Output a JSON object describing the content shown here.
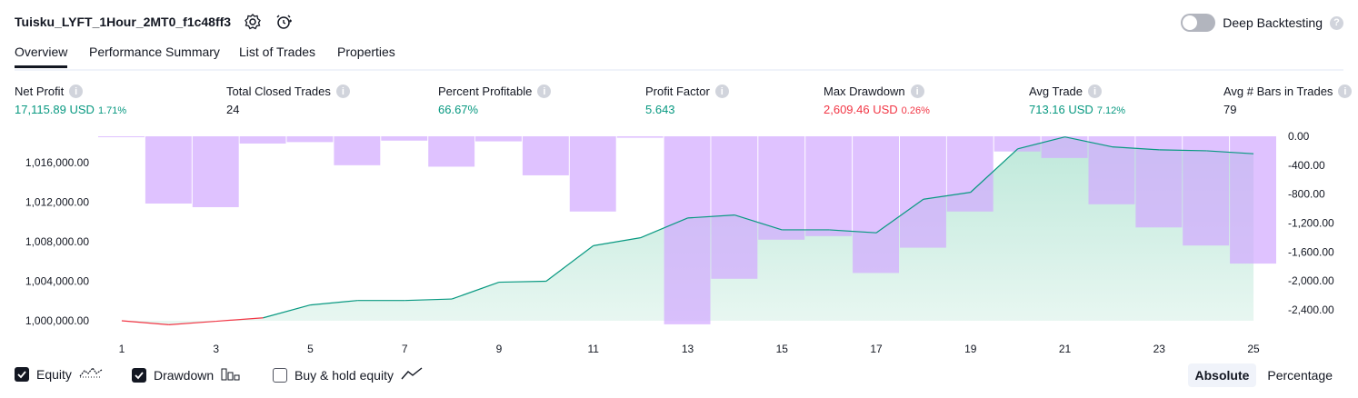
{
  "header": {
    "title": "Tuisku_LYFT_1Hour_2MT0_f1c48ff3",
    "deep_backtesting_label": "Deep Backtesting",
    "deep_backtesting_on": false
  },
  "tabs": [
    {
      "label": "Overview",
      "active": true
    },
    {
      "label": "Performance Summary",
      "active": false
    },
    {
      "label": "List of Trades",
      "active": false
    },
    {
      "label": "Properties",
      "active": false
    }
  ],
  "metrics": [
    {
      "label": "Net Profit",
      "value": "17,115.89 USD",
      "pct": "1.71%",
      "color": "pos"
    },
    {
      "label": "Total Closed Trades",
      "value": "24",
      "pct": "",
      "color": "neu"
    },
    {
      "label": "Percent Profitable",
      "value": "66.67%",
      "pct": "",
      "color": "pos"
    },
    {
      "label": "Profit Factor",
      "value": "5.643",
      "pct": "",
      "color": "pos"
    },
    {
      "label": "Max Drawdown",
      "value": "2,609.46 USD",
      "pct": "0.26%",
      "color": "neg"
    },
    {
      "label": "Avg Trade",
      "value": "713.16 USD",
      "pct": "7.12%",
      "color": "pos"
    },
    {
      "label": "Avg # Bars in Trades",
      "value": "79",
      "pct": "",
      "color": "neu"
    }
  ],
  "chart_data": {
    "type": "line+bar",
    "x": [
      1,
      2,
      3,
      4,
      5,
      6,
      7,
      8,
      9,
      10,
      11,
      12,
      13,
      14,
      15,
      16,
      17,
      18,
      19,
      20,
      21,
      22,
      23,
      24,
      25
    ],
    "x_tick_labels": [
      "1",
      "3",
      "5",
      "7",
      "9",
      "11",
      "13",
      "15",
      "17",
      "19",
      "21",
      "23",
      "25"
    ],
    "equity": [
      1000000,
      999600,
      999950,
      1000300,
      1001600,
      1002050,
      1002050,
      1002200,
      1003900,
      1004000,
      1007600,
      1008400,
      1010400,
      1010700,
      1009200,
      1009200,
      1008900,
      1012300,
      1013000,
      1017400,
      1018600,
      1017600,
      1017300,
      1017200,
      1016900
    ],
    "drawdown": [
      -10,
      -930,
      -980,
      -100,
      -80,
      -400,
      -60,
      -420,
      -70,
      -540,
      -1040,
      -20,
      -2600,
      -1970,
      -1430,
      -1380,
      -1890,
      -1540,
      -1040,
      -210,
      -300,
      -940,
      -1260,
      -1510,
      -1760
    ],
    "equity_axis": {
      "ticks": [
        "1,000,000.00",
        "1,004,000.00",
        "1,008,000.00",
        "1,012,000.00",
        "1,016,000.00"
      ],
      "range": [
        999000,
        1018600
      ]
    },
    "drawdown_axis": {
      "ticks": [
        "0.00",
        "-400.00",
        "-800.00",
        "-1,200.00",
        "-1,600.00",
        "-2,000.00",
        "-2,400.00"
      ],
      "range": [
        -2600,
        0
      ]
    },
    "series": [
      {
        "name": "Equity"
      },
      {
        "name": "Drawdown"
      }
    ],
    "colors": {
      "equity_line_up": "#089981",
      "equity_line_down": "#f23645",
      "equity_fill": "#cdeee3",
      "drawdown_bar": "#d1a8ff",
      "drawdown_bar_opacity": 0.7
    }
  },
  "legend": {
    "equity_label": "Equity",
    "equity_checked": true,
    "drawdown_label": "Drawdown",
    "drawdown_checked": true,
    "buyhold_label": "Buy & hold equity",
    "buyhold_checked": false
  },
  "mode": {
    "absolute_label": "Absolute",
    "percentage_label": "Percentage",
    "active": "Absolute"
  }
}
